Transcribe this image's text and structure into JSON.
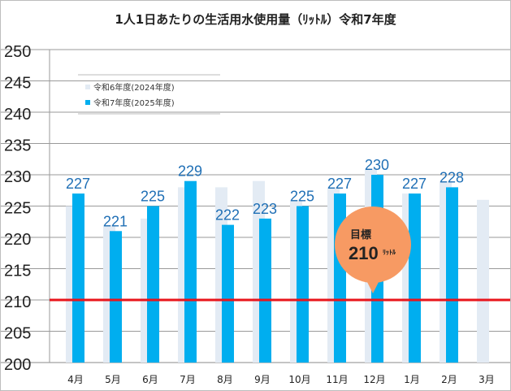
{
  "chart_data": {
    "type": "bar",
    "title": "1人1日あたりの生活用水使用量（ﾘｯﾄﾙ）令和7年度",
    "categories": [
      "4月",
      "5月",
      "6月",
      "7月",
      "8月",
      "9月",
      "10月",
      "11月",
      "12月",
      "1月",
      "2月",
      "3月"
    ],
    "series": [
      {
        "name": "令和6年度(2024年度)",
        "color": "#e3ebf4",
        "values": [
          225,
          222,
          223,
          228,
          228,
          229,
          226,
          228,
          231,
          227,
          229,
          226
        ]
      },
      {
        "name": "令和7年度(2025年度)",
        "color": "#00aeef",
        "values": [
          227,
          221,
          225,
          229,
          222,
          223,
          225,
          227,
          230,
          227,
          228,
          null
        ]
      }
    ],
    "ylim": [
      200,
      250
    ],
    "yticks": [
      200,
      205,
      210,
      215,
      220,
      225,
      230,
      235,
      240,
      245,
      250
    ],
    "grid": true,
    "legend": "top-left",
    "target": {
      "value": 210,
      "color": "#e8141b",
      "label": "目標",
      "value_label": "210",
      "unit": "ﾘｯﾄﾙ",
      "bubble_color": "#f79a63"
    }
  }
}
